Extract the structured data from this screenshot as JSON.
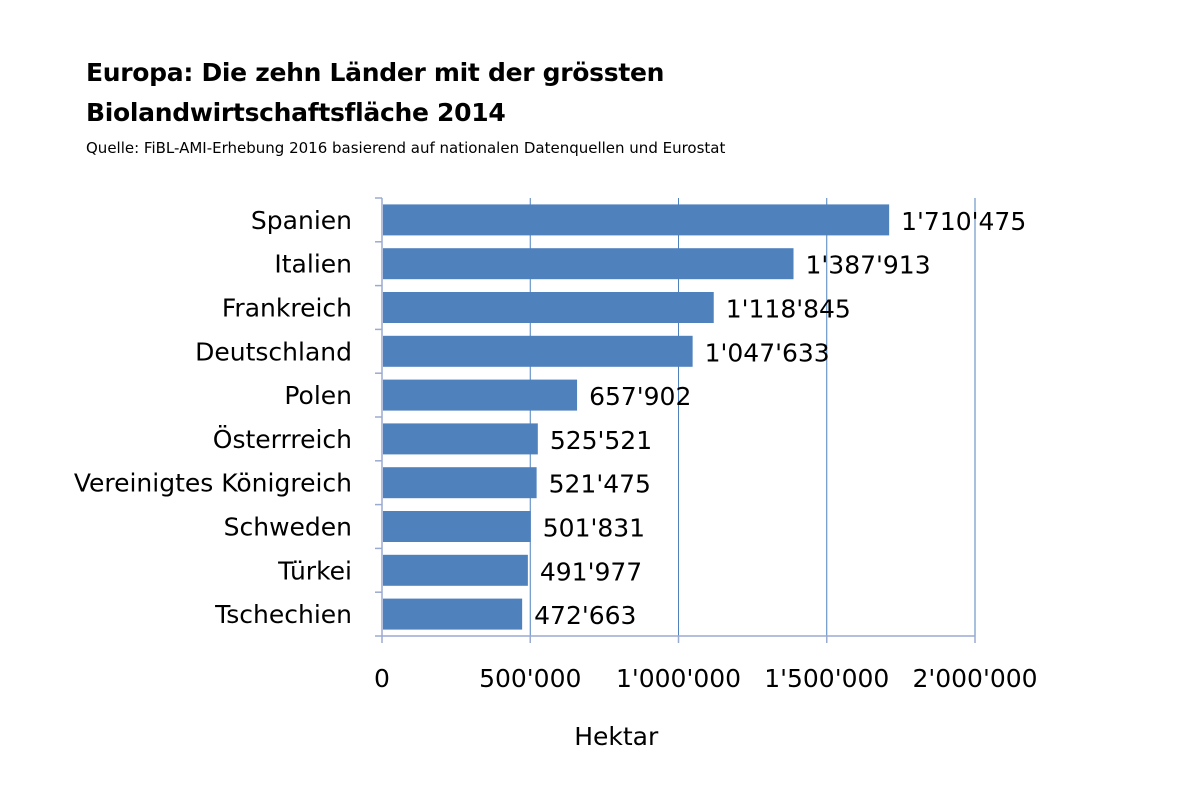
{
  "title_lines": [
    "Europa: Die zehn Länder mit der grössten",
    "Biolandwirtschaftsfläche 2014"
  ],
  "subtitle": "Quelle: FiBL-AMI-Erhebung 2016 basierend auf nationalen Datenquellen und Eurostat",
  "colors": {
    "bar": "#4f81bd",
    "gridline": "#4f81bd",
    "axis": "#9aaad0"
  },
  "chart_data": {
    "type": "bar",
    "orientation": "horizontal",
    "title": "Europa: Die zehn Länder mit der grössten Biolandwirtschaftsfläche 2014",
    "subtitle": "Quelle: FiBL-AMI-Erhebung 2016 basierend auf nationalen Datenquellen und Eurostat",
    "categories": [
      "Spanien",
      "Italien",
      "Frankreich",
      "Deutschland",
      "Polen",
      "Österrreich",
      "Vereinigtes Königreich",
      "Schweden",
      "Türkei",
      "Tschechien"
    ],
    "values": [
      1710475,
      1387913,
      1118845,
      1047633,
      657902,
      525521,
      521475,
      501831,
      491977,
      472663
    ],
    "value_labels": [
      "1'710'475",
      "1'387'913",
      "1'118'845",
      "1'047'633",
      "657'902",
      "525'521",
      "521'475",
      "501'831",
      "491'977",
      "472'663"
    ],
    "xlabel": "Hektar",
    "ylabel": "",
    "xlim": [
      0,
      2000000
    ],
    "ticks": [
      0,
      500000,
      1000000,
      1500000,
      2000000
    ],
    "tick_labels": [
      "0",
      "500'000",
      "1'000'000",
      "1'500'000",
      "2'000'000"
    ],
    "grid": true,
    "legend": "none"
  }
}
